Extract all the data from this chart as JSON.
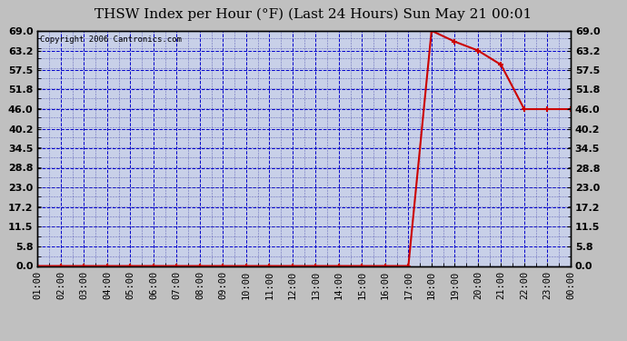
{
  "title": "THSW Index per Hour (°F) (Last 24 Hours) Sun May 21 00:01",
  "copyright": "Copyright 2006 Cantronics.com",
  "fig_bg_color": "#c0c0c0",
  "plot_bg_color": "#c8d0e8",
  "title_bg_color": "#c0c0c0",
  "border_color": "#000000",
  "line_color": "#cc0000",
  "grid_color_major": "#0000cc",
  "grid_color_minor": "#4444aa",
  "text_color": "#000000",
  "ytick_color": "#000000",
  "x_labels": [
    "01:00",
    "02:00",
    "03:00",
    "04:00",
    "05:00",
    "06:00",
    "07:00",
    "08:00",
    "09:00",
    "10:00",
    "11:00",
    "12:00",
    "13:00",
    "14:00",
    "15:00",
    "16:00",
    "17:00",
    "18:00",
    "19:00",
    "20:00",
    "21:00",
    "22:00",
    "23:00",
    "00:00"
  ],
  "hours": [
    1,
    2,
    3,
    4,
    5,
    6,
    7,
    8,
    9,
    10,
    11,
    12,
    13,
    14,
    15,
    16,
    17,
    18,
    19,
    20,
    21,
    22,
    23,
    24
  ],
  "values": [
    0,
    0,
    0,
    0,
    0,
    0,
    0,
    0,
    0,
    0,
    0,
    0,
    0,
    0,
    0,
    0,
    0,
    69.0,
    65.8,
    63.2,
    59.0,
    46.0,
    46.0,
    46.0
  ],
  "y_ticks": [
    0.0,
    5.8,
    11.5,
    17.2,
    23.0,
    28.8,
    34.5,
    40.2,
    46.0,
    51.8,
    57.5,
    63.2,
    69.0
  ],
  "ylim": [
    0.0,
    69.0
  ],
  "xlim": [
    1,
    24
  ],
  "title_fontsize": 11,
  "copyright_fontsize": 6.5,
  "tick_fontsize": 7.5,
  "ytick_fontsize": 8
}
